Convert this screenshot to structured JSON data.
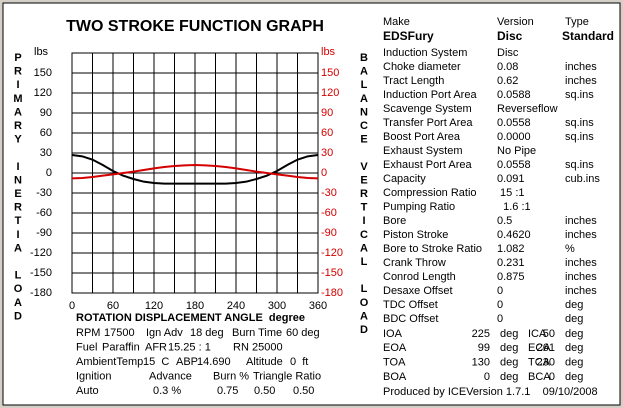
{
  "chart_data": {
    "type": "line",
    "title": "TWO STROKE FUNCTION GRAPH",
    "xlabel": "ROTATION DISPLACEMENT ANGLE  degree",
    "ylabel": "PRIMARY INERTIA LOAD",
    "y2label": "BALANCE VERTICAL LOAD",
    "yunit": "lbs",
    "y2unit": "lbs",
    "x": [
      0,
      15,
      30,
      45,
      60,
      75,
      90,
      105,
      120,
      135,
      150,
      165,
      180,
      195,
      210,
      225,
      240,
      255,
      270,
      285,
      300,
      315,
      330,
      345,
      360
    ],
    "xlim": [
      0,
      360
    ],
    "xticks": [
      0,
      60,
      120,
      180,
      240,
      300,
      360
    ],
    "xgrid_minor": [
      30,
      90,
      150,
      210,
      270,
      330
    ],
    "ylim": [
      -180,
      180
    ],
    "yticks": [
      150,
      120,
      90,
      60,
      30,
      0,
      -30,
      -60,
      -90,
      -120,
      -150,
      -180
    ],
    "y2lim": [
      -180,
      180
    ],
    "y2ticks": [
      150,
      120,
      90,
      60,
      30,
      0,
      -30,
      -60,
      -90,
      -120,
      -150,
      -180
    ],
    "grid": true,
    "y2color": "#d40000",
    "series": [
      {
        "color": "#000000",
        "values": [
          27,
          25,
          20,
          12,
          3,
          -4,
          -9,
          -13,
          -15,
          -16,
          -16,
          -16,
          -16,
          -16,
          -16,
          -16,
          -15,
          -13,
          -9,
          -4,
          3,
          12,
          20,
          25,
          27
        ]
      },
      {
        "color": "#d40000",
        "axis": "y2",
        "values": [
          -8,
          -7.5,
          -6,
          -4,
          -2,
          0,
          2,
          4.5,
          7,
          9,
          10.5,
          11.5,
          12,
          11.5,
          10.5,
          9,
          7,
          4.5,
          2,
          0,
          -2,
          -4,
          -6,
          -7.5,
          -8
        ]
      }
    ]
  },
  "run_conditions": {
    "rows": [
      [
        "RPM",
        "17500",
        "Ign Adv",
        "18 deg",
        "Burn Time",
        "60 deg"
      ],
      [
        "Fuel",
        "Paraffin",
        "AFR",
        "15.25 : 1",
        "RN",
        "25000"
      ],
      [
        "AmbientTemp",
        "15  C",
        "ABP",
        "14.690",
        "Altitude",
        "0  ft"
      ],
      [
        "Ignition",
        "Advance",
        "Burn %",
        "Triangle Ratio"
      ],
      [
        "Auto",
        "0.3 %",
        "0.75",
        "0.50",
        "0.50"
      ]
    ]
  },
  "engine": {
    "header": [
      "Make",
      "Version",
      "Type"
    ],
    "identity": [
      "EDSFury",
      "Disc",
      "Standard"
    ],
    "rows": [
      [
        "Induction System",
        "Disc"
      ],
      [
        "Choke diameter",
        "0.08",
        "inches"
      ],
      [
        "Tract Length",
        "0.62",
        "inches"
      ],
      [
        "Induction Port Area",
        "0.0588",
        "sq.ins"
      ],
      [
        "Scavenge System",
        "Reverseflow"
      ],
      [
        "Transfer Port Area",
        "0.0558",
        "sq.ins"
      ],
      [
        "Boost Port Area",
        "0.0000",
        "sq.ins"
      ],
      [
        "Exhaust System",
        "No Pipe"
      ],
      [
        "Exhaust Port Area",
        "0.0558",
        "sq.ins"
      ],
      [
        "Capacity",
        "0.091",
        "cub.ins"
      ],
      [
        "Compression Ratio",
        " 15 :1"
      ],
      [
        "Pumping Ratio",
        "  1.6 :1"
      ],
      [
        "Bore",
        "0.5",
        "inches"
      ],
      [
        "Piston Stroke",
        "0.4620",
        "inches"
      ],
      [
        "Bore to Stroke Ratio",
        "1.082",
        "%"
      ],
      [
        "Crank Throw",
        "0.231",
        "inches"
      ],
      [
        "Conrod Length",
        "0.875",
        "inches"
      ],
      [
        "Desaxe Offset",
        "0",
        "inches"
      ],
      [
        "TDC Offset",
        "0",
        "deg"
      ],
      [
        "BDC Offset",
        "0",
        "deg"
      ]
    ],
    "timing": [
      [
        "IOA",
        "225",
        "deg",
        "ICA",
        "50",
        "deg"
      ],
      [
        "EOA",
        "99",
        "deg",
        "ECA",
        "261",
        "deg"
      ],
      [
        "TOA",
        "130",
        "deg",
        "TCA",
        "230",
        "deg"
      ],
      [
        "BOA",
        "0",
        "deg",
        "BCA",
        "0",
        "deg"
      ]
    ],
    "footer": "Produced by ICEVersion 1.7.1    09/10/2008"
  }
}
